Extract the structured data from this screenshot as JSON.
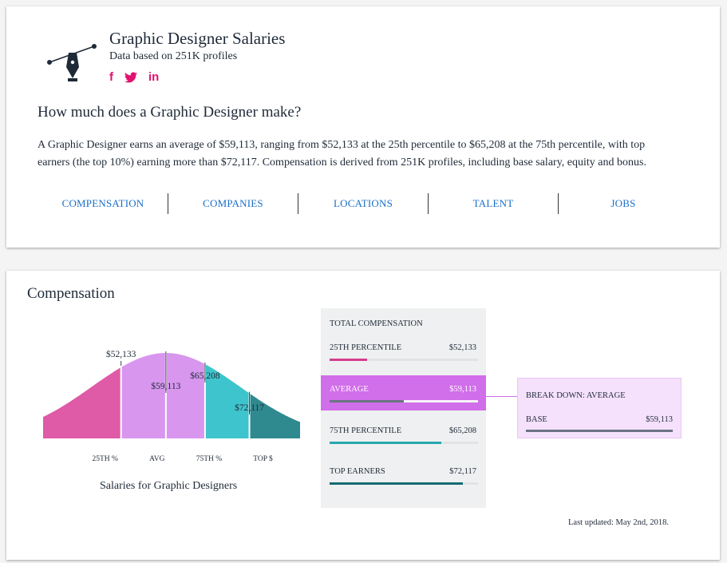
{
  "header": {
    "title": "Graphic Designer Salaries",
    "subtitle": "Data based on 251K profiles",
    "social": [
      {
        "name": "facebook",
        "glyph": "f"
      },
      {
        "name": "twitter",
        "glyph": "🐦"
      },
      {
        "name": "linkedin",
        "glyph": "in"
      }
    ]
  },
  "intro": {
    "question": "How much does a Graphic Designer make?",
    "description": "A Graphic Designer earns an average of $59,113, ranging from $52,133 at the 25th percentile to $65,208 at the 75th percentile, with top earners (the top 10%) earning more than $72,117. Compensation is derived from 251K profiles, including base salary, equity and bonus."
  },
  "tabs": [
    {
      "label": "COMPENSATION"
    },
    {
      "label": "COMPANIES"
    },
    {
      "label": "LOCATIONS"
    },
    {
      "label": "TALENT"
    },
    {
      "label": "JOBS"
    }
  ],
  "compensation": {
    "title": "Compensation",
    "chart_caption": "Salaries for Graphic Designers",
    "total_title": "TOTAL COMPENSATION",
    "rows": [
      {
        "label": "25TH PERCENTILE",
        "value": "$52,133",
        "fill": 0.25,
        "color": "#d63d8f"
      },
      {
        "label": "AVERAGE",
        "value": "$59,113",
        "fill": 0.5,
        "color": "#6b7384"
      },
      {
        "label": "75TH PERCENTILE",
        "value": "$65,208",
        "fill": 0.75,
        "color": "#26a7ad"
      },
      {
        "label": "TOP EARNERS",
        "value": "$72,117",
        "fill": 0.9,
        "color": "#136a74"
      }
    ],
    "breakdown": {
      "title": "BREAK DOWN: AVERAGE",
      "base_label": "BASE",
      "base_value": "$59,113"
    },
    "last_updated": "Last updated: May 2nd, 2018."
  },
  "chart_data": {
    "type": "area",
    "title": "",
    "markers": [
      {
        "label": "$52,133",
        "value": 52133,
        "axis_label": "25TH %",
        "color": "#df5aa7"
      },
      {
        "label": "$59,113",
        "value": 59113,
        "axis_label": "AVG",
        "color": "#d896ef"
      },
      {
        "label": "$65,208",
        "value": 65208,
        "axis_label": "75TH %",
        "color": "#3ec4cc"
      },
      {
        "label": "$72,117",
        "value": 72117,
        "axis_label": "TOP $",
        "color": "#2f8a8f"
      }
    ]
  }
}
